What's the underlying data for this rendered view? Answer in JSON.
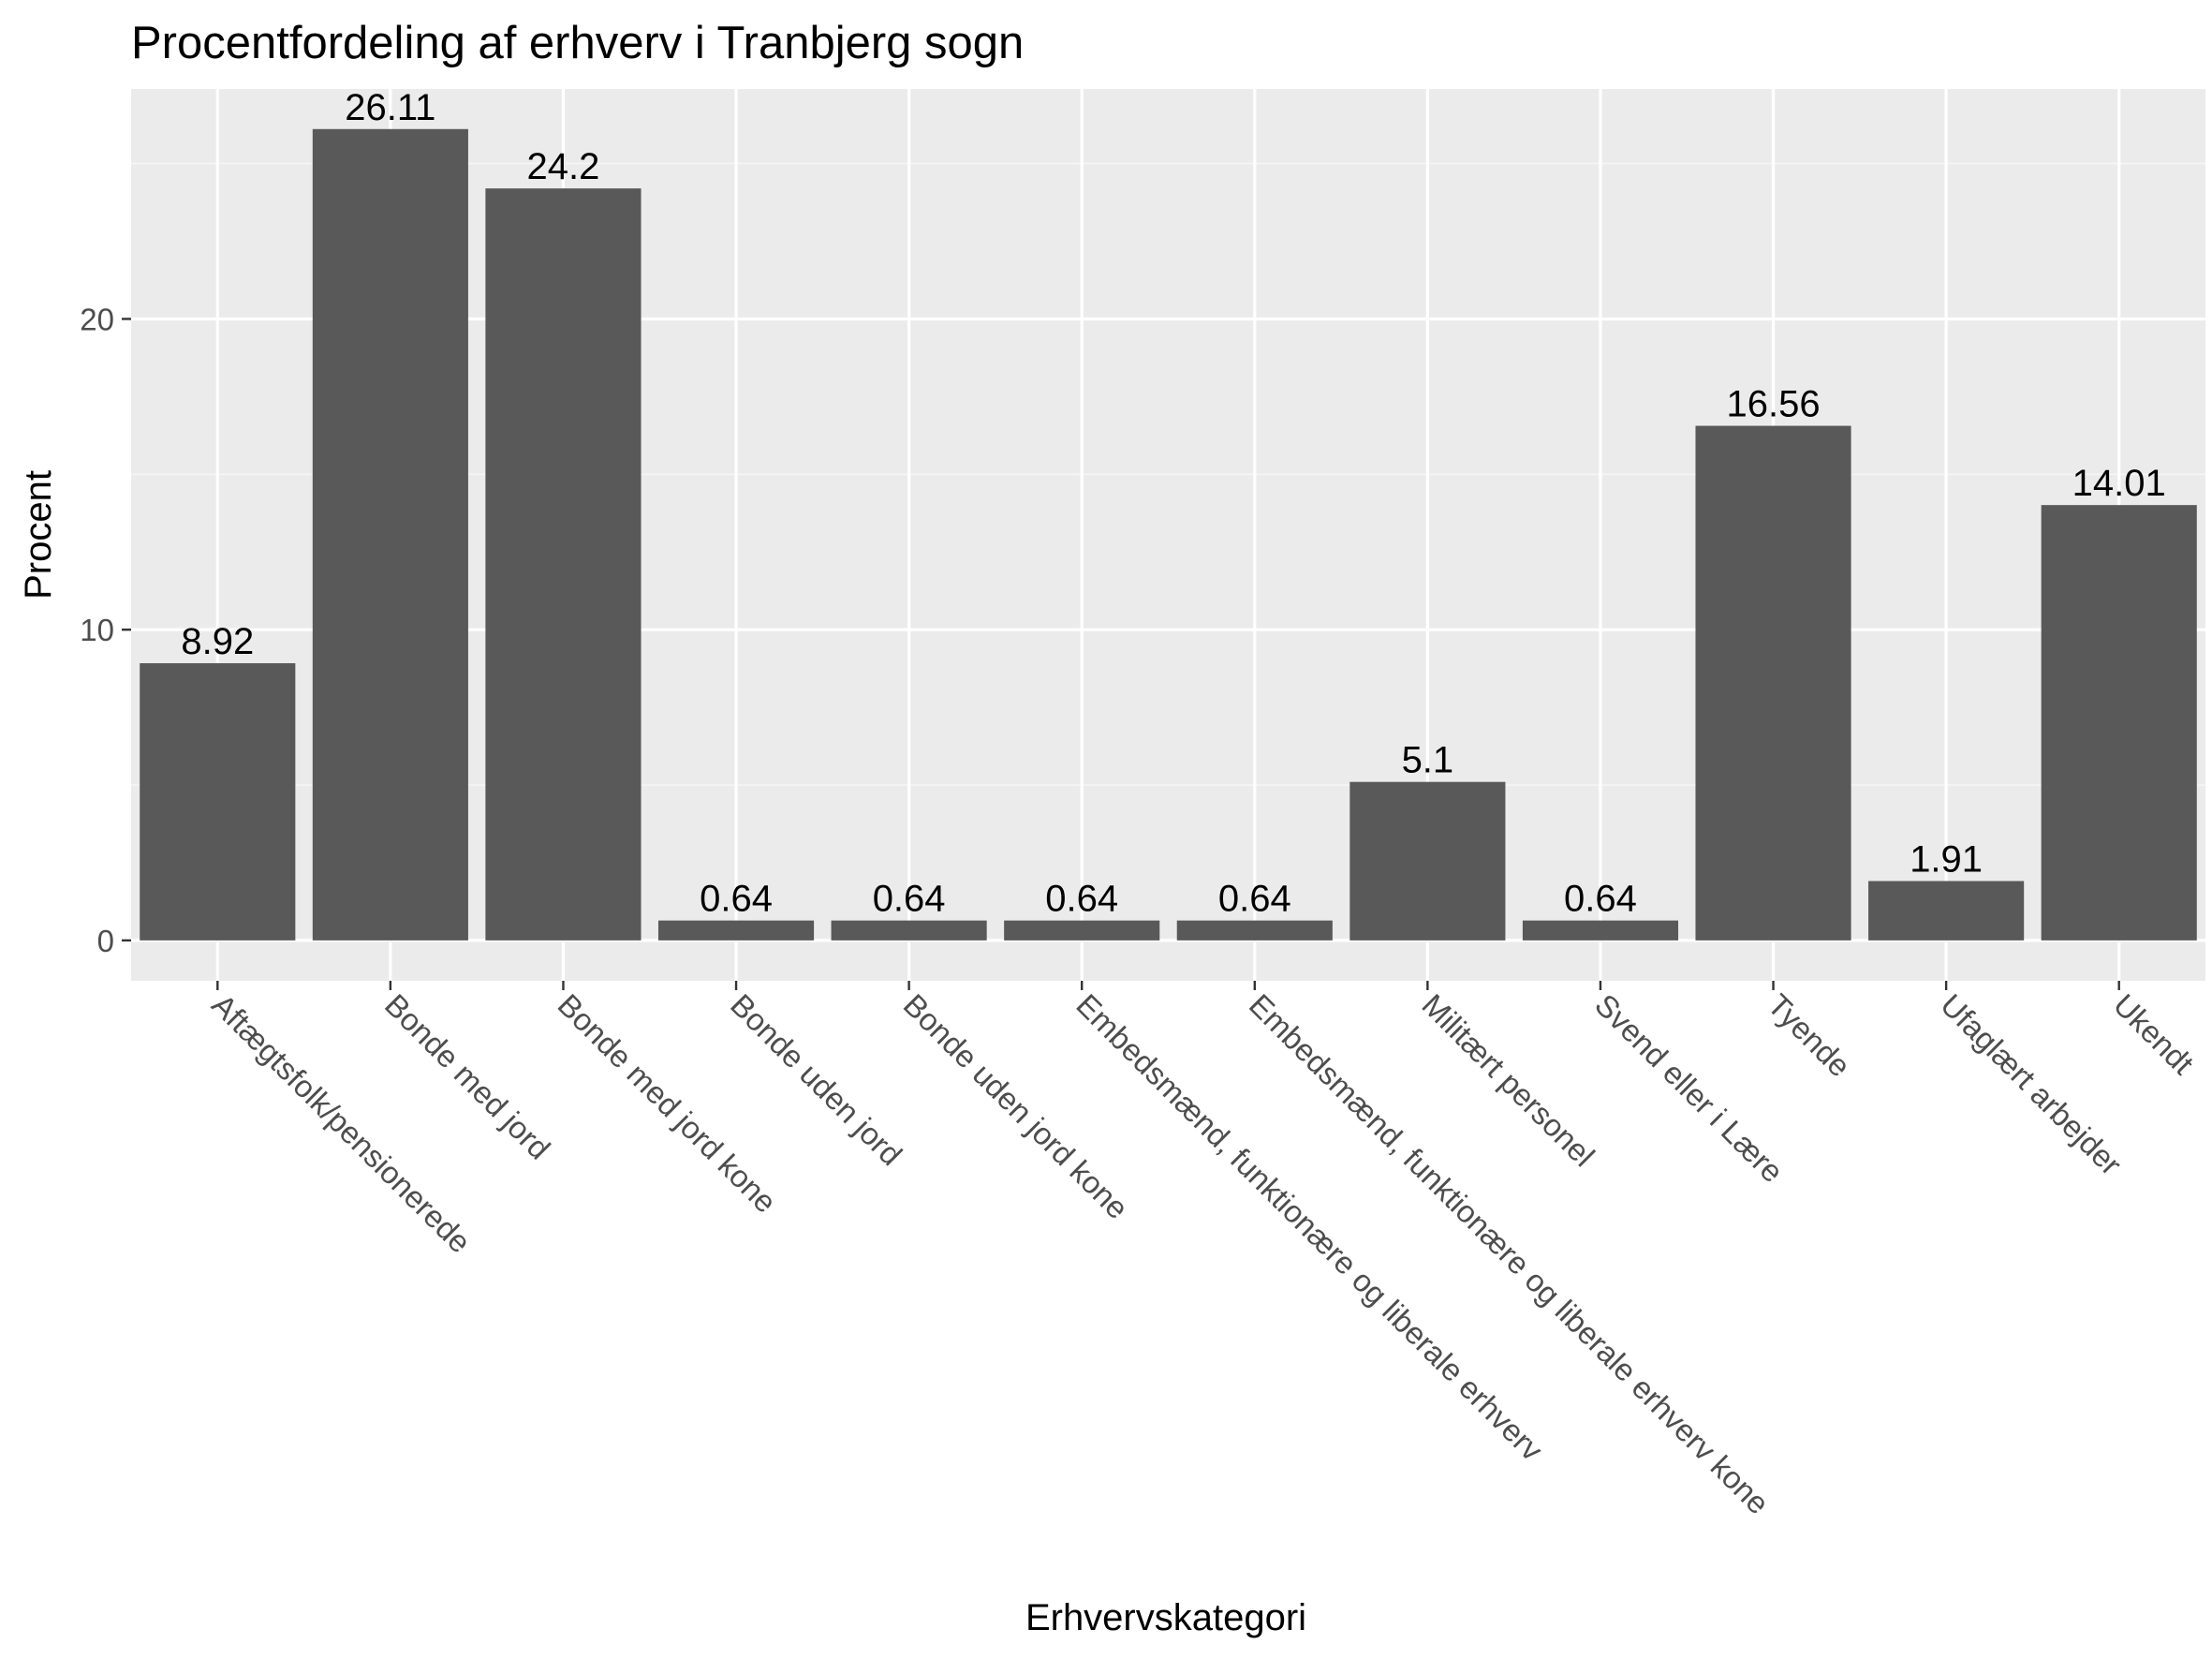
{
  "chart_data": {
    "type": "bar",
    "title": "Procentfordeling af erhverv i Tranbjerg sogn",
    "xlabel": "Erhvervskategori",
    "ylabel": "Procent",
    "categories": [
      "Aftægtsfolk/pensionerede",
      "Bonde med jord",
      "Bonde med jord kone",
      "Bonde uden jord",
      "Bonde uden jord kone",
      "Embedsmænd, funktionære og liberale erhverv",
      "Embedsmænd, funktionære og liberale erhverv kone",
      "Militært personel",
      "Svend eller i Lære",
      "Tyende",
      "Ufaglært arbejder",
      "Ukendt"
    ],
    "values": [
      8.92,
      26.11,
      24.2,
      0.64,
      0.64,
      0.64,
      0.64,
      5.1,
      0.64,
      16.56,
      1.91,
      14.01
    ],
    "value_labels": [
      "8.92",
      "26.11",
      "24.2",
      "0.64",
      "0.64",
      "0.64",
      "0.64",
      "5.1",
      "0.64",
      "16.56",
      "1.91",
      "14.01"
    ],
    "ylim": [
      -1.3,
      27.4
    ],
    "yticks": [
      0,
      10,
      20
    ],
    "ytick_labels": [
      "0",
      "10",
      "20"
    ],
    "grid": true,
    "legend": "none",
    "colors": {
      "bar": "#595959",
      "panel": "#ebebeb",
      "grid_major": "#ffffff",
      "grid_minor": "#f5f5f5",
      "tick_text": "#4d4d4d",
      "text": "#000000"
    }
  }
}
